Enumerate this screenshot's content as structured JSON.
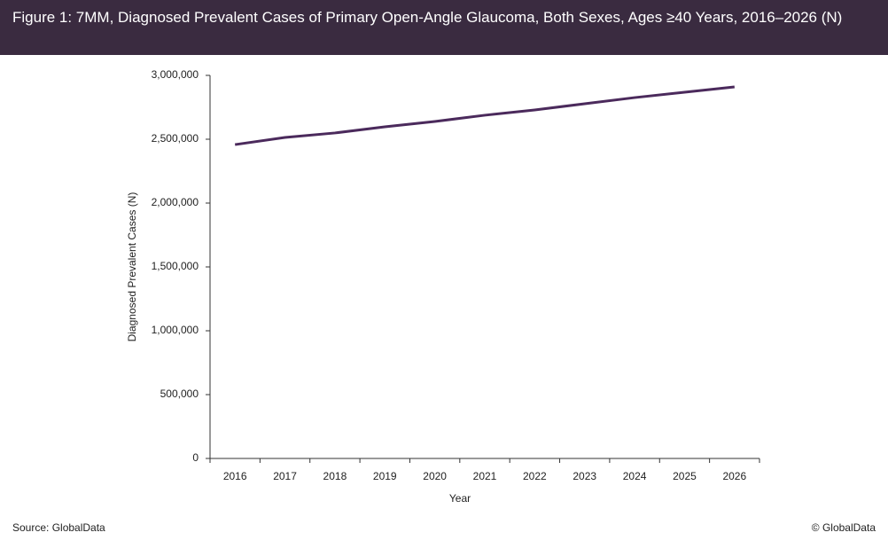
{
  "chart_data": {
    "type": "line",
    "title": "Figure 1: 7MM, Diagnosed Prevalent Cases of Primary Open-Angle Glaucoma, Both Sexes, Ages ≥40 Years, 2016–2026 (N)",
    "x_label": "Year",
    "y_label": "Diagnosed Prevalent Cases (N)",
    "categories": [
      "2016",
      "2017",
      "2018",
      "2019",
      "2020",
      "2021",
      "2022",
      "2023",
      "2024",
      "2025",
      "2026"
    ],
    "series": [
      {
        "name": "Diagnosed Prevalent Cases",
        "color": "#4b2a5c",
        "values": [
          2458000,
          2514000,
          2549000,
          2597000,
          2639000,
          2688000,
          2729000,
          2778000,
          2826000,
          2868000,
          2910000
        ]
      }
    ],
    "ylim": [
      0,
      3000000
    ],
    "yticks": [
      0,
      {
        "value": 500000,
        "label": "500,000"
      },
      {
        "value": 1000000,
        "label": "1,000,000"
      },
      {
        "value": 1500000,
        "label": "1,500,000"
      },
      {
        "value": 2000000,
        "label": "2,000,000"
      },
      {
        "value": 2500000,
        "label": "2,500,000"
      },
      {
        "value": 3000000,
        "label": "3,000,000"
      }
    ],
    "grid": false,
    "source": "Source: GlobalData",
    "copyright": "© GlobalData"
  }
}
